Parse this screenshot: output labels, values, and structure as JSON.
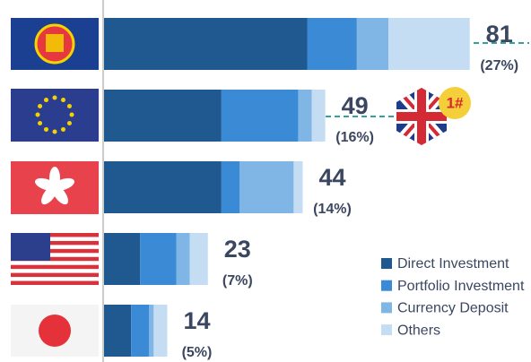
{
  "chart_data": {
    "type": "stacked-bar-horizontal",
    "xlim": [
      0,
      90
    ],
    "series": [
      {
        "name": "Direct Investment",
        "color": "#20598f",
        "values": [
          45,
          26,
          26,
          8,
          6
        ]
      },
      {
        "name": "Portfolio Investment",
        "color": "#3a8ad6",
        "values": [
          11,
          17,
          4,
          8,
          4
        ]
      },
      {
        "name": "Currency Deposit",
        "color": "#7fb6e6",
        "values": [
          7,
          3,
          12,
          3,
          1
        ]
      },
      {
        "name": "Others",
        "color": "#c5ddf3",
        "values": [
          18,
          3,
          2,
          4,
          3
        ]
      }
    ],
    "totals": [
      81,
      49,
      44,
      23,
      14
    ],
    "shares": [
      27,
      16,
      14,
      7,
      5
    ],
    "share_labels": [
      "(27%)",
      "(16%)",
      "(14%)",
      "(7%)",
      "(5%)"
    ],
    "annotation": "1#"
  }
}
